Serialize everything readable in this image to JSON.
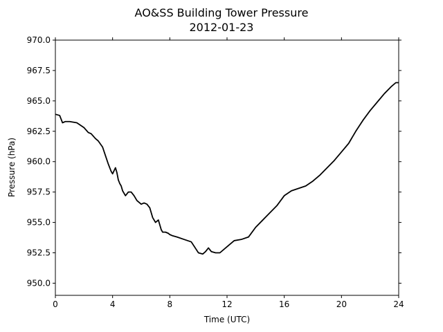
{
  "chart_data": {
    "type": "line",
    "title": "AO&SS Building Tower Pressure",
    "subtitle": "2012-01-23",
    "xlabel": "Time (UTC)",
    "ylabel": "Pressure (hPa)",
    "xlim": [
      0,
      24
    ],
    "ylim": [
      949,
      970
    ],
    "xticks": [
      0,
      4,
      8,
      12,
      16,
      20,
      24
    ],
    "xtick_labels": [
      "0",
      "4",
      "8",
      "12",
      "16",
      "20",
      "24"
    ],
    "yticks": [
      950,
      952.5,
      955,
      957.5,
      960,
      962.5,
      965,
      967.5,
      970
    ],
    "ytick_labels": [
      "950.0",
      "952.5",
      "955.0",
      "957.5",
      "960.0",
      "962.5",
      "965.0",
      "967.5",
      "970.0"
    ],
    "grid": false,
    "line_color": "#000000",
    "series": [
      {
        "x": [
          0,
          0.3,
          0.5,
          0.7,
          1.0,
          1.5,
          2.0,
          2.3,
          2.5,
          2.8,
          3.0,
          3.3,
          3.5,
          3.7,
          3.9,
          4.0,
          4.2,
          4.3,
          4.4,
          4.5,
          4.6,
          4.7,
          4.9,
          5.1,
          5.3,
          5.5,
          5.7,
          6.0,
          6.2,
          6.4,
          6.6,
          6.8,
          7.0,
          7.2,
          7.4,
          7.5,
          7.7,
          7.9,
          8.0,
          8.2,
          8.5,
          9.0,
          9.5,
          10.0,
          10.3,
          10.5,
          10.7,
          10.9,
          11.2,
          11.5,
          12.0,
          12.2,
          12.5,
          13.0,
          13.5,
          14.0,
          14.5,
          15.0,
          15.5,
          16.0,
          16.5,
          17.0,
          17.5,
          18.0,
          18.5,
          19.0,
          19.5,
          20.0,
          20.5,
          21.0,
          21.5,
          22.0,
          22.5,
          23.0,
          23.5,
          23.8,
          24.0
        ],
        "y": [
          963.9,
          963.8,
          963.2,
          963.3,
          963.3,
          963.2,
          962.8,
          962.4,
          962.3,
          961.9,
          961.7,
          961.2,
          960.5,
          959.8,
          959.2,
          959.0,
          959.5,
          959.1,
          958.5,
          958.2,
          958.0,
          957.6,
          957.2,
          957.5,
          957.5,
          957.2,
          956.8,
          956.5,
          956.6,
          956.5,
          956.2,
          955.4,
          955.0,
          955.2,
          954.4,
          954.2,
          954.2,
          954.1,
          954.0,
          953.9,
          953.8,
          953.6,
          953.4,
          952.5,
          952.4,
          952.6,
          952.9,
          952.6,
          952.5,
          952.5,
          953.0,
          953.2,
          953.5,
          953.6,
          953.8,
          954.6,
          955.2,
          955.8,
          956.4,
          957.2,
          957.6,
          957.8,
          958.0,
          958.4,
          958.9,
          959.5,
          960.1,
          960.8,
          961.5,
          962.5,
          963.4,
          964.2,
          964.9,
          965.6,
          966.2,
          966.5,
          966.5
        ]
      }
    ]
  }
}
